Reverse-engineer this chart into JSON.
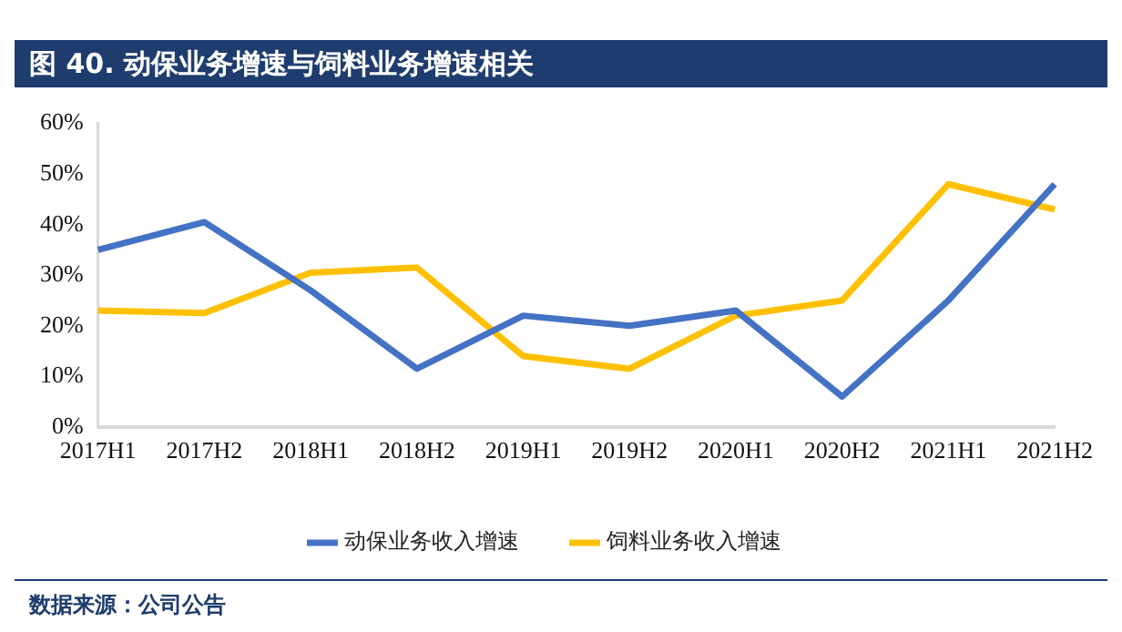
{
  "chart_data": {
    "type": "line",
    "title": "图 40.  动保业务增速与饲料业务增速相关",
    "categories": [
      "2017H1",
      "2017H2",
      "2018H1",
      "2018H2",
      "2019H1",
      "2019H2",
      "2020H1",
      "2020H2",
      "2021H1",
      "2021H2"
    ],
    "series": [
      {
        "name": "动保业务收入增速",
        "color": "#4472c4",
        "values": [
          35,
          40.5,
          27,
          11.5,
          22,
          20,
          23,
          6,
          25,
          48
        ]
      },
      {
        "name": "饲料业务收入增速",
        "color": "#ffc000",
        "values": [
          23,
          22.5,
          30.5,
          31.5,
          14,
          11.5,
          22,
          25,
          48,
          43
        ]
      }
    ],
    "ylim": [
      0,
      60
    ],
    "yticks": [
      {
        "value": 0,
        "label": "0%"
      },
      {
        "value": 10,
        "label": "10%"
      },
      {
        "value": 20,
        "label": "20%"
      },
      {
        "value": 30,
        "label": "30%"
      },
      {
        "value": 40,
        "label": "40%"
      },
      {
        "value": 50,
        "label": "50%"
      },
      {
        "value": 60,
        "label": "60%"
      }
    ],
    "grid": false,
    "legend": "bottom",
    "marker": "none",
    "line_style": "solid",
    "annotations": [
      "数据来源：公司公告"
    ]
  }
}
